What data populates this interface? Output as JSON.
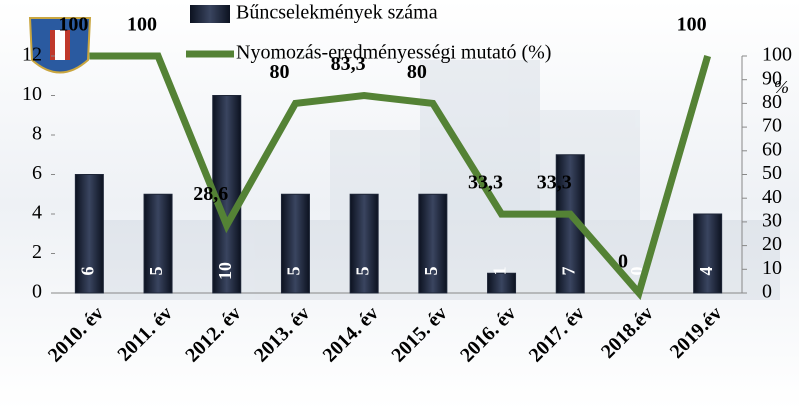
{
  "chart_data": {
    "type": "bar",
    "categories": [
      "2010. év",
      "2011. év",
      "2012. év",
      "2013. év",
      "2014. év",
      "2015. év",
      "2016. év",
      "2017. év",
      "2018.év",
      "2019.év"
    ],
    "series": [
      {
        "name": "Bűncselekmények száma",
        "type": "bar",
        "color": "#1e2638",
        "values": [
          6,
          5,
          10,
          5,
          5,
          5,
          1,
          7,
          0,
          4
        ]
      },
      {
        "name": "Nyomozás-eredményességi mutató (%)",
        "type": "line",
        "axis": "y2",
        "color": "#548235",
        "values": [
          100,
          100,
          28.6,
          80,
          83.3,
          80,
          33.3,
          33.3,
          0,
          100
        ],
        "value_labels": [
          "100",
          "100",
          "28,6",
          "80",
          "83,3",
          "80",
          "33,3",
          "33,3",
          "0",
          "100"
        ]
      }
    ],
    "ylim": [
      0,
      12
    ],
    "yticks": [
      0,
      2,
      4,
      6,
      8,
      10,
      12
    ],
    "y2lim": [
      0,
      100
    ],
    "y2ticks": [
      0,
      10,
      20,
      30,
      40,
      50,
      60,
      70,
      80,
      90,
      100
    ],
    "y2_label": "%"
  }
}
